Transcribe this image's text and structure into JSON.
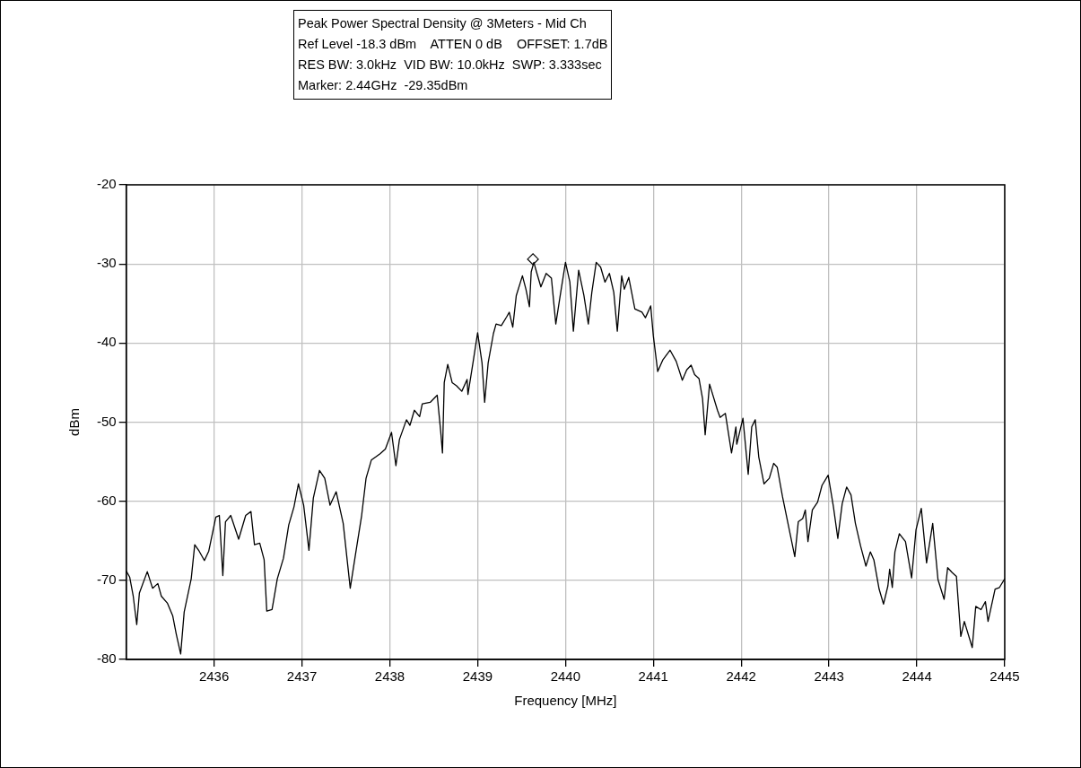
{
  "chart_data": {
    "type": "line",
    "title": "Peak Power Spectral Density @ 3Meters - Mid Ch",
    "annotations": [
      "Ref Level -18.3 dBm    ATTEN 0 dB    OFFSET: 1.7dB",
      "RES BW: 3.0kHz  VID BW: 10.0kHz  SWP: 3.333sec",
      "Marker: 2.44GHz  -29.35dBm"
    ],
    "xlabel": "Frequency [MHz]",
    "ylabel": "dBm",
    "xlim": [
      2435,
      2445
    ],
    "xticks": [
      2436,
      2437,
      2438,
      2439,
      2440,
      2441,
      2442,
      2443,
      2444,
      2445
    ],
    "ylim": [
      -80,
      -20
    ],
    "yticks": [
      -80,
      -70,
      -60,
      -50,
      -40,
      -30,
      -20
    ],
    "grid": true,
    "marker": "none",
    "line_style": "solid",
    "series": [
      {
        "type": "line",
        "color": "#000000",
        "x": [
          2435.0,
          2435.04,
          2435.08,
          2435.12,
          2435.15,
          2435.24,
          2435.3,
          2435.36,
          2435.4,
          2435.47,
          2435.53,
          2435.57,
          2435.62,
          2435.66,
          2435.74,
          2435.78,
          2435.83,
          2435.89,
          2435.94,
          2436.02,
          2436.06,
          2436.1,
          2436.13,
          2436.19,
          2436.28,
          2436.36,
          2436.42,
          2436.46,
          2436.52,
          2436.57,
          2436.6,
          2436.66,
          2436.72,
          2436.79,
          2436.85,
          2436.91,
          2436.96,
          2437.02,
          2437.08,
          2437.13,
          2437.2,
          2437.26,
          2437.32,
          2437.39,
          2437.47,
          2437.55,
          2437.62,
          2437.68,
          2437.73,
          2437.79,
          2437.89,
          2437.95,
          2438.02,
          2438.07,
          2438.11,
          2438.19,
          2438.23,
          2438.28,
          2438.34,
          2438.37,
          2438.46,
          2438.54,
          2438.58,
          2438.6,
          2438.62,
          2438.66,
          2438.71,
          2438.76,
          2438.82,
          2438.88,
          2438.89,
          2438.95,
          2439.0,
          2439.05,
          2439.08,
          2439.12,
          2439.18,
          2439.21,
          2439.27,
          2439.33,
          2439.36,
          2439.4,
          2439.44,
          2439.51,
          2439.55,
          2439.59,
          2439.61,
          2439.64,
          2439.67,
          2439.72,
          2439.78,
          2439.84,
          2439.89,
          2439.94,
          2440.0,
          2440.05,
          2440.09,
          2440.15,
          2440.21,
          2440.26,
          2440.3,
          2440.35,
          2440.4,
          2440.45,
          2440.5,
          2440.55,
          2440.59,
          2440.64,
          2440.67,
          2440.72,
          2440.79,
          2440.87,
          2440.91,
          2440.97,
          2441.0,
          2441.05,
          2441.11,
          2441.19,
          2441.26,
          2441.33,
          2441.38,
          2441.43,
          2441.47,
          2441.52,
          2441.56,
          2441.59,
          2441.64,
          2441.73,
          2441.76,
          2441.82,
          2441.89,
          2441.94,
          2441.95,
          2442.02,
          2442.08,
          2442.12,
          2442.16,
          2442.2,
          2442.26,
          2442.32,
          2442.37,
          2442.41,
          2442.47,
          2442.54,
          2442.61,
          2442.65,
          2442.7,
          2442.73,
          2442.76,
          2442.81,
          2442.87,
          2442.92,
          2442.99,
          2443.05,
          2443.1,
          2443.15,
          2443.2,
          2443.25,
          2443.3,
          2443.36,
          2443.42,
          2443.47,
          2443.51,
          2443.57,
          2443.62,
          2443.67,
          2443.69,
          2443.72,
          2443.75,
          2443.8,
          2443.87,
          2443.94,
          2443.99,
          2444.05,
          2444.11,
          2444.18,
          2444.24,
          2444.31,
          2444.35,
          2444.4,
          2444.45,
          2444.5,
          2444.54,
          2444.63,
          2444.67,
          2444.73,
          2444.78,
          2444.81,
          2444.89,
          2444.94,
          2445.0
        ],
        "values": [
          -68.8,
          -69.6,
          -72,
          -75.6,
          -71.6,
          -68.9,
          -71,
          -70.4,
          -72,
          -72.9,
          -74.5,
          -76.8,
          -79.3,
          -74,
          -69.8,
          -65.5,
          -66.3,
          -67.5,
          -66.3,
          -62,
          -61.8,
          -69.4,
          -62.6,
          -61.8,
          -64.8,
          -61.8,
          -61.3,
          -65.5,
          -65.3,
          -67.4,
          -73.9,
          -73.7,
          -69.8,
          -67.2,
          -63,
          -60.7,
          -57.8,
          -60.5,
          -66.2,
          -59.6,
          -56.1,
          -57.1,
          -60.5,
          -58.8,
          -62.8,
          -71,
          -66,
          -61.8,
          -57.1,
          -54.8,
          -54,
          -53.4,
          -51.3,
          -55.5,
          -52.2,
          -49.7,
          -50.4,
          -48.5,
          -49.3,
          -47.7,
          -47.5,
          -46.6,
          -51.2,
          -53.9,
          -45,
          -42.7,
          -45,
          -45.4,
          -46.1,
          -44.6,
          -46.5,
          -42.3,
          -38.7,
          -42.5,
          -47.5,
          -42.5,
          -38.8,
          -37.6,
          -37.8,
          -36.7,
          -36.1,
          -38,
          -34,
          -31.5,
          -33.2,
          -35.4,
          -31,
          -29.8,
          -31,
          -32.9,
          -31.2,
          -31.8,
          -37.6,
          -34,
          -29.8,
          -32.3,
          -38.5,
          -30.8,
          -34,
          -37.6,
          -33.6,
          -29.8,
          -30.4,
          -32.3,
          -31.2,
          -33.6,
          -38.5,
          -31.5,
          -33.2,
          -31.7,
          -35.7,
          -36.1,
          -36.8,
          -35.3,
          -39.1,
          -43.6,
          -42.1,
          -40.9,
          -42.3,
          -44.7,
          -43.4,
          -42.8,
          -44,
          -44.5,
          -47,
          -51.6,
          -45.2,
          -48.5,
          -49.4,
          -48.9,
          -53.9,
          -50.6,
          -52.8,
          -49.5,
          -56.6,
          -50.6,
          -49.7,
          -54.4,
          -57.8,
          -57.1,
          -55.2,
          -55.7,
          -59.4,
          -63.2,
          -67,
          -62.6,
          -62.2,
          -61.1,
          -65.1,
          -61.1,
          -60.1,
          -58,
          -56.7,
          -60.7,
          -64.7,
          -60.3,
          -58.2,
          -59.2,
          -62.8,
          -65.7,
          -68.2,
          -66.4,
          -67.4,
          -71.1,
          -73,
          -70.7,
          -68.6,
          -70.9,
          -66.4,
          -64.1,
          -65.1,
          -69.7,
          -63.6,
          -60.9,
          -67.8,
          -62.8,
          -69.9,
          -72.4,
          -68.4,
          -69,
          -69.5,
          -77.1,
          -75.2,
          -78.5,
          -73.3,
          -73.7,
          -72.7,
          -75.2,
          -71.1,
          -70.9,
          -69.8
        ]
      },
      {
        "type": "scatter",
        "color": "#000000",
        "marker": "diamond",
        "x": [
          2439.63
        ],
        "values": [
          -29.4
        ]
      }
    ]
  }
}
